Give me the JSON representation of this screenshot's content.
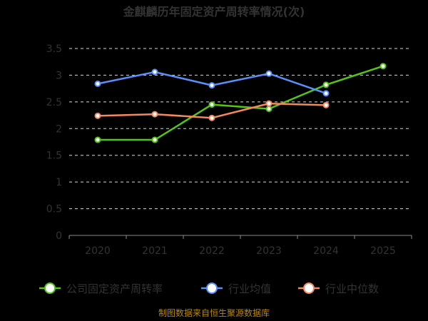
{
  "chart_data": {
    "type": "line",
    "title": "金麒麟历年固定资产周转率情况(次)",
    "categories": [
      "2020",
      "2021",
      "2022",
      "2023",
      "2024",
      "2025"
    ],
    "ylim": [
      0,
      3.5
    ],
    "yticks": [
      0,
      0.5,
      1,
      1.5,
      2,
      2.5,
      3,
      3.5
    ],
    "ytick_labels": [
      "0",
      "0.5",
      "1",
      "1.5",
      "2",
      "2.5",
      "3",
      "3.5"
    ],
    "grid": true,
    "legend_position": "bottom",
    "series": [
      {
        "name": "公司固定资产周转率",
        "color": "#52c41a",
        "values": [
          1.79,
          1.79,
          2.45,
          2.37,
          2.82,
          3.17
        ]
      },
      {
        "name": "行业均值",
        "color": "#5b8ff9",
        "values": [
          2.84,
          3.06,
          2.81,
          3.03,
          2.66,
          null
        ]
      },
      {
        "name": "行业中位数",
        "color": "#f4895f",
        "values": [
          2.24,
          2.27,
          2.2,
          2.47,
          2.44,
          null
        ]
      }
    ],
    "source": "制图数据来自恒生聚源数据库"
  }
}
